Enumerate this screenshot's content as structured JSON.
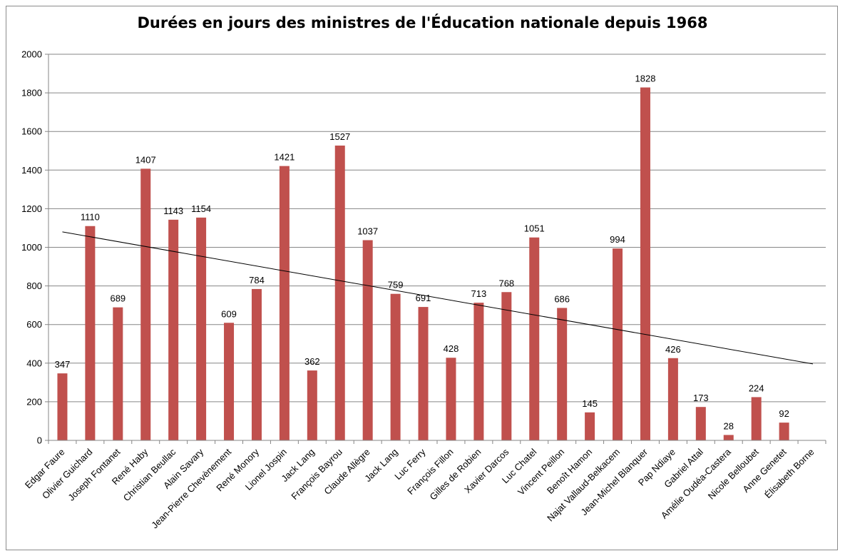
{
  "chart_data": {
    "type": "bar",
    "title": "Durées en jours des ministres de l'Éducation nationale depuis 1968",
    "xlabel": "",
    "ylabel": "",
    "ylim": [
      0,
      2000
    ],
    "yticks": [
      0,
      200,
      400,
      600,
      800,
      1000,
      1200,
      1400,
      1600,
      1800,
      2000
    ],
    "grid": true,
    "legend": "none",
    "categories": [
      "Edgar Faure",
      "Olivier Guichard",
      "Joseph Fontanet",
      "René Haby",
      "Christian Beullac",
      "Alain Savary",
      "Jean-Pierre Chevènement",
      "René Monory",
      "Lionel Jospin",
      "Jack Lang",
      "François Bayrou",
      "Claude Allègre",
      "Jack Lang",
      "Luc Ferry",
      "François Fillon",
      "Gilles de Robien",
      "Xavier Darcos",
      "Luc Chatel",
      "Vincent Peillon",
      "Benoît Hamon",
      "Najat Vallaud-Belkacem",
      "Jean-Michel Blanquer",
      "Pap Ndiaye",
      "Gabriel Attal",
      "Amélie Oudéa-Castera",
      "Nicole Belloubet",
      "Anne Genetet",
      "Élisabeth Borne"
    ],
    "values": [
      347,
      1110,
      689,
      1407,
      1143,
      1154,
      609,
      784,
      1421,
      362,
      1527,
      1037,
      759,
      691,
      428,
      713,
      768,
      1051,
      686,
      145,
      994,
      1828,
      426,
      173,
      28,
      224,
      92,
      null
    ],
    "data_labels": [
      "347",
      "1110",
      "689",
      "1407",
      "1143",
      "1154",
      "609",
      "784",
      "1421",
      "362",
      "1527",
      "1037",
      "759",
      "691",
      "428",
      "713",
      "768",
      "1051",
      "686",
      "145",
      "994",
      "1828",
      "426",
      "173",
      "28",
      "224",
      "92",
      ""
    ],
    "bar_color": "#c0504d",
    "trendline": {
      "type": "linear",
      "start_value": 1080,
      "end_value": 396,
      "color": "#000000"
    }
  }
}
